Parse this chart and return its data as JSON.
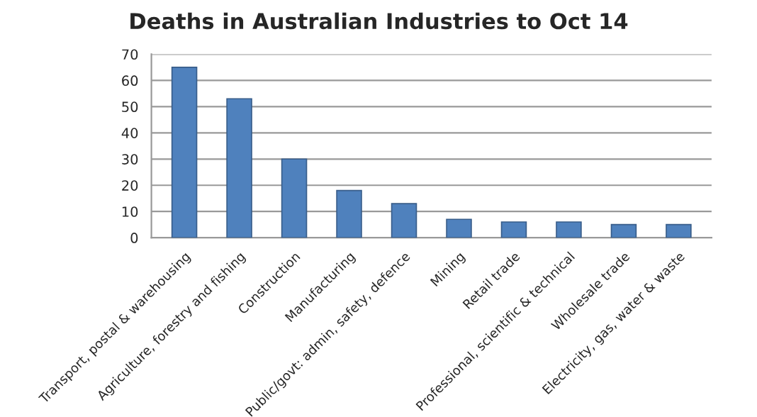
{
  "chart_data": {
    "type": "bar",
    "title": "Deaths in Australian Industries to Oct 14",
    "categories": [
      "Transport, postal & warehousing",
      "Agriculture, forestry and fishing",
      "Construction",
      "Manufacturing",
      "Public/govt: admin, safety, defence",
      "Mining",
      "Retail trade",
      "Professional, scientific & technical",
      "Wholesale trade",
      "Electricity, gas, water & waste"
    ],
    "values": [
      65,
      53,
      30,
      18,
      13,
      7,
      6,
      6,
      5,
      5
    ],
    "color": "#4f81bd",
    "ylim": [
      0,
      70
    ],
    "yticks": [
      0,
      10,
      20,
      30,
      40,
      50,
      60,
      70
    ],
    "grid": "y"
  }
}
